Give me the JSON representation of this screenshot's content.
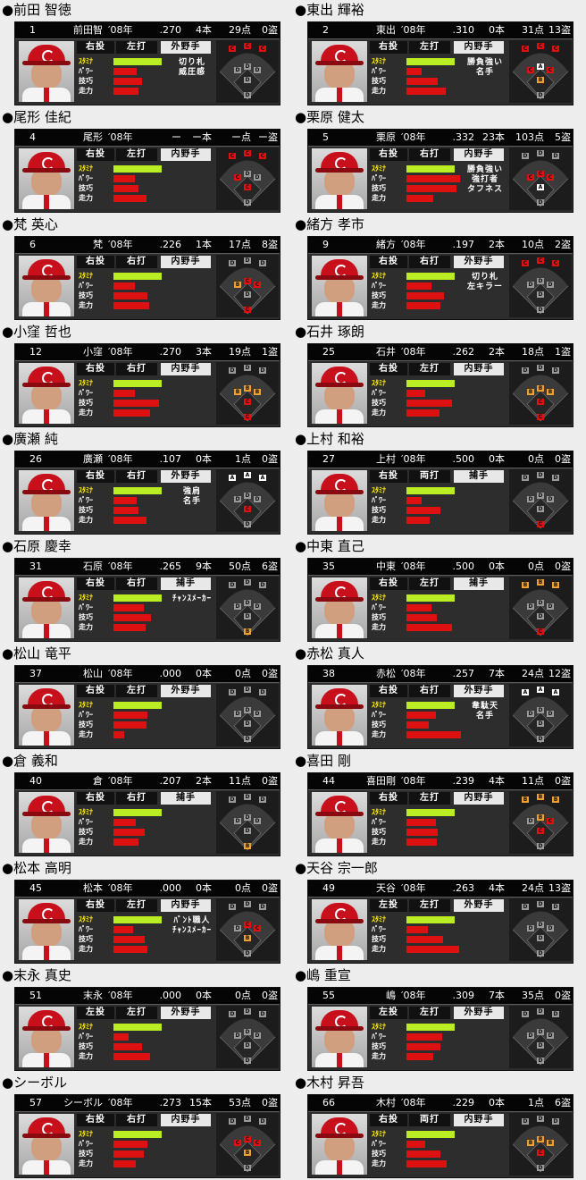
{
  "header_labels": {
    "year": "′08年",
    "hr_suffix": "本",
    "rbi_suffix": "点",
    "sb_suffix": "盗"
  },
  "stat_labels": {
    "stamina": "ｽﾀﾐﾅ",
    "power": "ﾊﾟﾜｰ",
    "technique": "技巧",
    "speed": "走力"
  },
  "grade_colors": {
    "A": "#ffffff",
    "B": "#f0a030",
    "C": "#e01010",
    "D": "#9a9a9a",
    "E": "#9a9a9a"
  },
  "players": [
    {
      "name": "●前田 智徳",
      "num": "1",
      "short": "前田智",
      "avg": ".270",
      "hr": "4",
      "rbi": "29",
      "sb": "0",
      "throw": "右投",
      "bat": "左打",
      "pos": "外野手",
      "bars": [
        0.87,
        0.42,
        0.52,
        0.45
      ],
      "skills": [
        "切り札",
        "威圧感"
      ],
      "field": [
        "C",
        "C",
        "C",
        "D",
        "D",
        "D",
        "D",
        "D"
      ]
    },
    {
      "name": "●東出 輝裕",
      "num": "2",
      "short": "東出",
      "avg": ".310",
      "hr": "0",
      "rbi": "31",
      "sb": "13",
      "throw": "右投",
      "bat": "左打",
      "pos": "内野手",
      "bars": [
        0.87,
        0.28,
        0.56,
        0.71
      ],
      "skills": [
        "勝負強い",
        "名手"
      ],
      "field": [
        "C",
        "C",
        "C",
        "C",
        "A",
        "C",
        "B",
        "D"
      ]
    },
    {
      "name": "●尾形 佳紀",
      "num": "4",
      "short": "尾形",
      "avg": "ー",
      "hr": "ー",
      "rbi": "ー",
      "sb": "ー",
      "throw": "右投",
      "bat": "左打",
      "pos": "内野手",
      "bars": [
        0.87,
        0.38,
        0.45,
        0.59
      ],
      "skills": [],
      "field": [
        "C",
        "C",
        "C",
        "C",
        "D",
        "D",
        "C",
        "D"
      ]
    },
    {
      "name": "●栗原 健太",
      "num": "5",
      "short": "栗原",
      "avg": ".332",
      "hr": "23",
      "rbi": "103",
      "sb": "5",
      "throw": "右投",
      "bat": "右打",
      "pos": "内野手",
      "bars": [
        0.87,
        0.97,
        0.91,
        0.48
      ],
      "skills": [
        "勝負強い",
        "強打者",
        "タフネス"
      ],
      "field": [
        "D",
        "D",
        "D",
        "C",
        "C",
        "C",
        "A",
        "D"
      ]
    },
    {
      "name": "●梵 英心",
      "num": "6",
      "short": "梵",
      "avg": ".226",
      "hr": "1",
      "rbi": "17",
      "sb": "8",
      "throw": "右投",
      "bat": "右打",
      "pos": "内野手",
      "bars": [
        0.87,
        0.39,
        0.61,
        0.65
      ],
      "skills": [],
      "field": [
        "D",
        "D",
        "D",
        "B",
        "C",
        "C",
        "D",
        "C"
      ]
    },
    {
      "name": "●緒方 孝市",
      "num": "9",
      "short": "緒方",
      "avg": ".197",
      "hr": "2",
      "rbi": "10",
      "sb": "2",
      "throw": "右投",
      "bat": "右打",
      "pos": "外野手",
      "bars": [
        0.87,
        0.45,
        0.67,
        0.62
      ],
      "skills": [
        "切り札",
        "左キラー"
      ],
      "field": [
        "C",
        "C",
        "C",
        "D",
        "D",
        "D",
        "D",
        "D"
      ]
    },
    {
      "name": "●小窪 哲也",
      "num": "12",
      "short": "小窪",
      "avg": ".270",
      "hr": "3",
      "rbi": "19",
      "sb": "1",
      "throw": "右投",
      "bat": "右打",
      "pos": "内野手",
      "bars": [
        0.87,
        0.39,
        0.82,
        0.66
      ],
      "skills": [],
      "field": [
        "D",
        "D",
        "D",
        "B",
        "B",
        "B",
        "C",
        "C"
      ]
    },
    {
      "name": "●石井 琢朗",
      "num": "25",
      "short": "石井",
      "avg": ".262",
      "hr": "2",
      "rbi": "18",
      "sb": "1",
      "throw": "右投",
      "bat": "左打",
      "pos": "内野手",
      "bars": [
        0.87,
        0.34,
        0.82,
        0.59
      ],
      "skills": [],
      "field": [
        "D",
        "D",
        "D",
        "B",
        "B",
        "B",
        "C",
        "C"
      ]
    },
    {
      "name": "●廣瀬 純",
      "num": "26",
      "short": "廣瀬",
      "avg": ".107",
      "hr": "0",
      "rbi": "1",
      "sb": "0",
      "throw": "右投",
      "bat": "右打",
      "pos": "外野手",
      "bars": [
        0.87,
        0.42,
        0.45,
        0.59
      ],
      "skills": [
        "強肩",
        "名手"
      ],
      "field": [
        "A",
        "A",
        "A",
        "D",
        "D",
        "D",
        "C",
        "D"
      ]
    },
    {
      "name": "●上村 和裕",
      "num": "27",
      "short": "上村",
      "avg": ".500",
      "hr": "0",
      "rbi": "0",
      "sb": "0",
      "throw": "右投",
      "bat": "両打",
      "pos": "捕手",
      "bars": [
        0.87,
        0.27,
        0.61,
        0.42
      ],
      "skills": [],
      "field": [
        "D",
        "D",
        "D",
        "D",
        "D",
        "D",
        "D",
        "C"
      ]
    },
    {
      "name": "●石原 慶幸",
      "num": "31",
      "short": "石原",
      "avg": ".265",
      "hr": "9",
      "rbi": "50",
      "sb": "6",
      "throw": "右投",
      "bat": "右打",
      "pos": "捕手",
      "bars": [
        0.87,
        0.55,
        0.68,
        0.58
      ],
      "skills": [
        "ﾁｬﾝｽﾒｰｶｰ"
      ],
      "field": [
        "D",
        "D",
        "D",
        "D",
        "D",
        "D",
        "D",
        "B"
      ]
    },
    {
      "name": "●中東 直己",
      "num": "35",
      "short": "中東",
      "avg": ".500",
      "hr": "0",
      "rbi": "0",
      "sb": "0",
      "throw": "右投",
      "bat": "左打",
      "pos": "捕手",
      "bars": [
        0.87,
        0.45,
        0.55,
        0.82
      ],
      "skills": [],
      "field": [
        "B",
        "B",
        "B",
        "D",
        "D",
        "D",
        "D",
        "C"
      ]
    },
    {
      "name": "●松山 竜平",
      "num": "37",
      "short": "松山",
      "avg": ".000",
      "hr": "0",
      "rbi": "0",
      "sb": "0",
      "throw": "右投",
      "bat": "左打",
      "pos": "外野手",
      "bars": [
        0.87,
        0.62,
        0.59,
        0.2
      ],
      "skills": [],
      "field": [
        "D",
        "D",
        "D",
        "D",
        "D",
        "D",
        "D",
        "D"
      ]
    },
    {
      "name": "●赤松 真人",
      "num": "38",
      "short": "赤松",
      "avg": ".257",
      "hr": "7",
      "rbi": "24",
      "sb": "12",
      "throw": "右投",
      "bat": "右打",
      "pos": "外野手",
      "bars": [
        0.87,
        0.53,
        0.41,
        0.98
      ],
      "skills": [
        "韋駄天",
        "名手"
      ],
      "field": [
        "A",
        "A",
        "A",
        "D",
        "D",
        "D",
        "D",
        "D"
      ]
    },
    {
      "name": "●倉 義和",
      "num": "40",
      "short": "倉",
      "avg": ".207",
      "hr": "2",
      "rbi": "11",
      "sb": "0",
      "throw": "右投",
      "bat": "右打",
      "pos": "捕手",
      "bars": [
        0.87,
        0.41,
        0.57,
        0.45
      ],
      "skills": [],
      "field": [
        "D",
        "D",
        "D",
        "D",
        "D",
        "D",
        "D",
        "B"
      ]
    },
    {
      "name": "●喜田 剛",
      "num": "44",
      "short": "喜田剛",
      "avg": ".239",
      "hr": "4",
      "rbi": "11",
      "sb": "0",
      "throw": "右投",
      "bat": "左打",
      "pos": "内野手",
      "bars": [
        0.87,
        0.53,
        0.56,
        0.55
      ],
      "skills": [],
      "field": [
        "B",
        "B",
        "B",
        "D",
        "B",
        "C",
        "C",
        "D"
      ]
    },
    {
      "name": "●松本 高明",
      "num": "45",
      "short": "松本",
      "avg": ".000",
      "hr": "0",
      "rbi": "0",
      "sb": "0",
      "throw": "右投",
      "bat": "左打",
      "pos": "内野手",
      "bars": [
        0.87,
        0.36,
        0.56,
        0.62
      ],
      "skills": [
        "ﾊﾞﾝﾄ職人",
        "ﾁｬﾝｽﾒｰｶｰ"
      ],
      "field": [
        "D",
        "D",
        "D",
        "D",
        "C",
        "C",
        "B",
        "D"
      ]
    },
    {
      "name": "●天谷 宗一郎",
      "num": "49",
      "short": "天谷",
      "avg": ".263",
      "hr": "4",
      "rbi": "24",
      "sb": "13",
      "throw": "左投",
      "bat": "左打",
      "pos": "外野手",
      "bars": [
        0.87,
        0.38,
        0.66,
        0.95
      ],
      "skills": [],
      "field": [
        "D",
        "D",
        "D",
        "D",
        "D",
        "D",
        "D",
        "D"
      ]
    },
    {
      "name": "●末永 真史",
      "num": "51",
      "short": "末永",
      "avg": ".000",
      "hr": "0",
      "rbi": "0",
      "sb": "0",
      "throw": "左投",
      "bat": "左打",
      "pos": "外野手",
      "bars": [
        0.87,
        0.28,
        0.52,
        0.66
      ],
      "skills": [],
      "field": [
        "D",
        "D",
        "D",
        "D",
        "D",
        "D",
        "D",
        "D"
      ]
    },
    {
      "name": "●嶋 重宣",
      "num": "55",
      "short": "嶋",
      "avg": ".309",
      "hr": "7",
      "rbi": "35",
      "sb": "0",
      "throw": "左投",
      "bat": "左打",
      "pos": "外野手",
      "bars": [
        0.87,
        0.65,
        0.62,
        0.48
      ],
      "skills": [],
      "field": [
        "D",
        "D",
        "D",
        "D",
        "D",
        "D",
        "D",
        "D"
      ]
    },
    {
      "name": "●シーボル",
      "num": "57",
      "short": "シーボル",
      "avg": ".273",
      "hr": "15",
      "rbi": "53",
      "sb": "0",
      "throw": "右投",
      "bat": "右打",
      "pos": "内野手",
      "bars": [
        0.87,
        0.62,
        0.55,
        0.4
      ],
      "skills": [],
      "field": [
        "D",
        "D",
        "D",
        "C",
        "C",
        "C",
        "B",
        "D"
      ]
    },
    {
      "name": "●木村 昇吾",
      "num": "66",
      "short": "木村",
      "avg": ".229",
      "hr": "0",
      "rbi": "1",
      "sb": "6",
      "throw": "右投",
      "bat": "両打",
      "pos": "内野手",
      "bars": [
        0.87,
        0.34,
        0.62,
        0.72
      ],
      "skills": [],
      "field": [
        "D",
        "D",
        "D",
        "B",
        "B",
        "B",
        "C",
        "D"
      ]
    }
  ]
}
